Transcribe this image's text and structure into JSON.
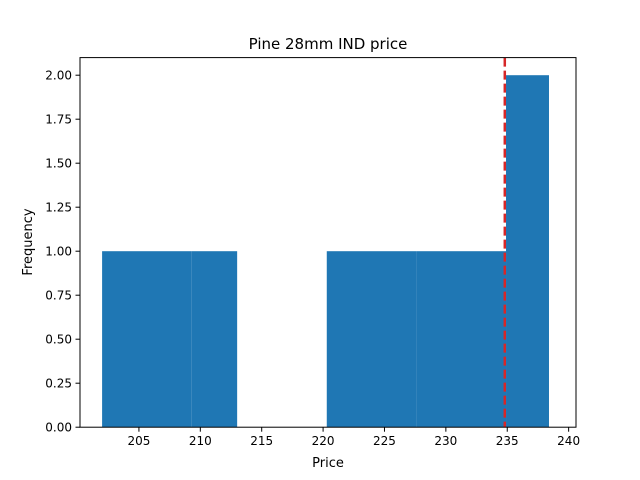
{
  "chart_data": {
    "type": "bar",
    "title": "Pine 28mm IND price",
    "xlabel": "Price",
    "ylabel": "Frequency",
    "xlim": [
      200.2,
      240.6
    ],
    "ylim": [
      0,
      2.1
    ],
    "xticks": [
      205,
      210,
      215,
      220,
      225,
      230,
      235,
      240
    ],
    "yticks": [
      "0.00",
      "0.25",
      "0.50",
      "0.75",
      "1.00",
      "1.25",
      "1.50",
      "1.75",
      "2.00"
    ],
    "bins": [
      {
        "start": 202.0,
        "end": 209.3,
        "count": 1
      },
      {
        "start": 209.3,
        "end": 213.0,
        "count": 1
      },
      {
        "start": 213.0,
        "end": 220.3,
        "count": 0
      },
      {
        "start": 220.3,
        "end": 227.6,
        "count": 1
      },
      {
        "start": 227.6,
        "end": 234.9,
        "count": 1
      },
      {
        "start": 234.9,
        "end": 238.4,
        "count": 2
      }
    ],
    "reference_line": {
      "x": 234.8,
      "style": "dashed",
      "color": "#d62728"
    },
    "bar_color": "#1f77b4",
    "grid": false,
    "legend": "none"
  }
}
